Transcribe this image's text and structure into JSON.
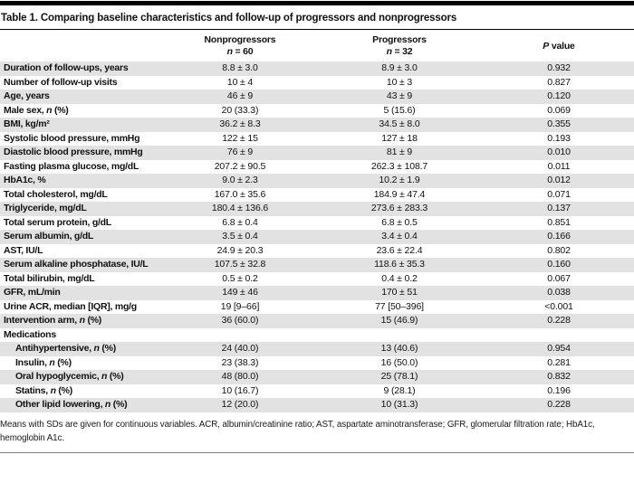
{
  "colors": {
    "stripe": "#e2e2e2",
    "top_bar": "#000000",
    "title_rule": "#000000",
    "bottom_rule": "#7f7f7f"
  },
  "table": {
    "title": "Table 1. Comparing baseline characteristics and follow-up of progressors and nonprogressors",
    "header": {
      "group1_name": "Nonprogressors",
      "group1_n": "*n* = 60",
      "group2_name": "Progressors",
      "group2_n": "*n* = 32",
      "pvalue": "*P* value"
    },
    "rows": [
      {
        "label": "Duration of follow-ups, years",
        "v1": "8.8 ± 3.0",
        "v2": "8.9 ± 3.0",
        "p": "0.932"
      },
      {
        "label": "Number of follow-up visits",
        "v1": "10 ± 4",
        "v2": "10 ± 3",
        "p": "0.827"
      },
      {
        "label": "Age, years",
        "v1": "46 ± 9",
        "v2": "43 ± 9",
        "p": "0.120"
      },
      {
        "label": "Male sex, *n* (%)",
        "v1": "20 (33.3)",
        "v2": "5 (15.6)",
        "p": "0.069"
      },
      {
        "label": "BMI, kg/m²",
        "v1": "36.2 ± 8.3",
        "v2": "34.5 ± 8.0",
        "p": "0.355"
      },
      {
        "label": "Systolic blood pressure, mmHg",
        "v1": "122 ± 15",
        "v2": "127 ± 18",
        "p": "0.193"
      },
      {
        "label": "Diastolic blood pressure, mmHg",
        "v1": "76 ± 9",
        "v2": "81 ± 9",
        "p": "0.010"
      },
      {
        "label": "Fasting plasma glucose, mg/dL",
        "v1": "207.2 ± 90.5",
        "v2": "262.3 ± 108.7",
        "p": "0.011"
      },
      {
        "label": "HbA1c, %",
        "v1": "9.0 ± 2.3",
        "v2": "10.2 ± 1.9",
        "p": "0.012"
      },
      {
        "label": "Total cholesterol, mg/dL",
        "v1": "167.0 ± 35.6",
        "v2": "184.9 ± 47.4",
        "p": "0.071"
      },
      {
        "label": "Triglyceride, mg/dL",
        "v1": "180.4 ± 136.6",
        "v2": "273.6 ± 283.3",
        "p": "0.137"
      },
      {
        "label": "Total serum protein, g/dL",
        "v1": "6.8 ± 0.4",
        "v2": "6.8 ± 0.5",
        "p": "0.851"
      },
      {
        "label": "Serum albumin, g/dL",
        "v1": "3.5 ± 0.4",
        "v2": "3.4 ± 0.4",
        "p": "0.166"
      },
      {
        "label": "AST, IU/L",
        "v1": "24.9 ± 20.3",
        "v2": "23.6 ± 22.4",
        "p": "0.802"
      },
      {
        "label": "Serum alkaline phosphatase, IU/L",
        "v1": "107.5 ± 32.8",
        "v2": "118.6 ± 35.3",
        "p": "0.160"
      },
      {
        "label": "Total bilirubin, mg/dL",
        "v1": "0.5 ± 0.2",
        "v2": "0.4 ± 0.2",
        "p": "0.067"
      },
      {
        "label": "GFR, mL/min",
        "v1": "149 ± 46",
        "v2": "170 ± 51",
        "p": "0.038"
      },
      {
        "label": "Urine ACR, median [IQR], mg/g",
        "v1": "19 [9–66]",
        "v2": "77 [50–396]",
        "p": "<0.001"
      },
      {
        "label": "Intervention arm, *n* (%)",
        "v1": "36 (60.0)",
        "v2": "15 (46.9)",
        "p": "0.228"
      },
      {
        "label": "Medications",
        "v1": "",
        "v2": "",
        "p": "",
        "section": true
      },
      {
        "label": "Antihypertensive, *n* (%)",
        "v1": "24 (40.0)",
        "v2": "13 (40.6)",
        "p": "0.954",
        "indent": true
      },
      {
        "label": "Insulin, *n* (%)",
        "v1": "23 (38.3)",
        "v2": "16 (50.0)",
        "p": "0.281",
        "indent": true
      },
      {
        "label": "Oral hypoglycemic, *n* (%)",
        "v1": "48 (80.0)",
        "v2": "25 (78.1)",
        "p": "0.832",
        "indent": true
      },
      {
        "label": "Statins, *n* (%)",
        "v1": "10 (16.7)",
        "v2": "9 (28.1)",
        "p": "0.196",
        "indent": true
      },
      {
        "label": "Other lipid lowering, *n* (%)",
        "v1": "12 (20.0)",
        "v2": "10 (31.3)",
        "p": "0.228",
        "indent": true
      }
    ],
    "footnote_line1": "Means with SDs are given for continuous variables. ACR, albumin/creatinine ratio; AST, aspartate aminotransferase; GFR, glomerular filtration rate; HbA1c,",
    "footnote_line2": "hemoglobin A1c."
  }
}
